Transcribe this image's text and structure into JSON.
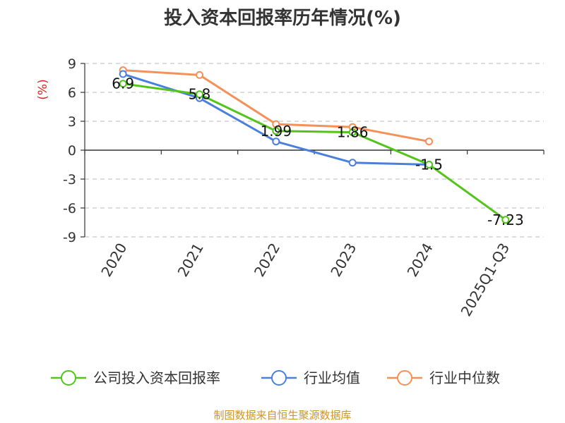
{
  "chart_data": {
    "type": "line",
    "title": "投入资本回报率历年情况(%)",
    "ylabel": "(%)",
    "xlabel": "",
    "categories": [
      "2020",
      "2021",
      "2022",
      "2023",
      "2024",
      "2025Q1-Q3"
    ],
    "y_ticks": [
      9,
      6,
      3,
      0,
      -3,
      -6,
      -9
    ],
    "ylim": [
      -9,
      9
    ],
    "grid": true,
    "legend_position": "bottom",
    "series": [
      {
        "name": "公司投入资本回报率",
        "color": "#52c41a",
        "values": [
          6.9,
          5.8,
          1.99,
          1.86,
          -1.5,
          -7.23
        ],
        "labels": [
          "6.9",
          "5.8",
          "1.99",
          "1.86",
          "-1.5",
          "-7.23"
        ]
      },
      {
        "name": "行业均值",
        "color": "#4a7fdb",
        "values": [
          7.9,
          5.4,
          0.9,
          -1.3,
          -1.5,
          null
        ]
      },
      {
        "name": "行业中位数",
        "color": "#f59058",
        "values": [
          8.3,
          7.8,
          2.7,
          2.4,
          0.9,
          null
        ]
      }
    ],
    "source": "制图数据来自恒生聚源数据库"
  }
}
